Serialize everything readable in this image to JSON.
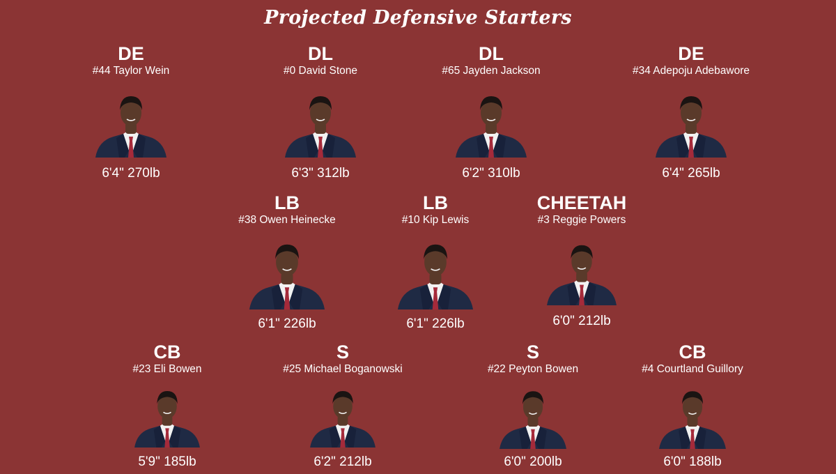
{
  "title": "Projected Defensive Starters",
  "colors": {
    "background": "#8b3434",
    "text": "#ffffff",
    "suit": "#1f2a44",
    "shirt": "#f2f2f2",
    "tie": "#a52a3a",
    "skin": "#5a3a2a",
    "hair": "#1a1412"
  },
  "rows": [
    {
      "players": [
        {
          "position": "DE",
          "name": "#44 Taylor Wein",
          "stats": "6'4\" 270lb"
        },
        {
          "position": "DL",
          "name": "#0 David Stone",
          "stats": "6'3\" 312lb"
        },
        {
          "position": "DL",
          "name": "#65 Jayden Jackson",
          "stats": "6'2\" 310lb"
        },
        {
          "position": "DE",
          "name": "#34 Adepoju Adebawore",
          "stats": "6'4\" 265lb"
        }
      ]
    },
    {
      "players": [
        {
          "position": "LB",
          "name": "#38 Owen Heinecke",
          "stats": "6'1\" 226lb"
        },
        {
          "position": "LB",
          "name": "#10 Kip Lewis",
          "stats": "6'1\" 226lb"
        },
        {
          "position": "CHEETAH",
          "name": "#3 Reggie Powers",
          "stats": "6'0\" 212lb"
        }
      ]
    },
    {
      "players": [
        {
          "position": "CB",
          "name": "#23 Eli Bowen",
          "stats": "5'9\" 185lb"
        },
        {
          "position": "S",
          "name": "#25 Michael Boganowski",
          "stats": "6'2\" 212lb"
        },
        {
          "position": "S",
          "name": "#22 Peyton Bowen",
          "stats": "6'0\" 200lb"
        },
        {
          "position": "CB",
          "name": "#4 Courtland Guillory",
          "stats": "6'0\" 188lb"
        }
      ]
    }
  ]
}
